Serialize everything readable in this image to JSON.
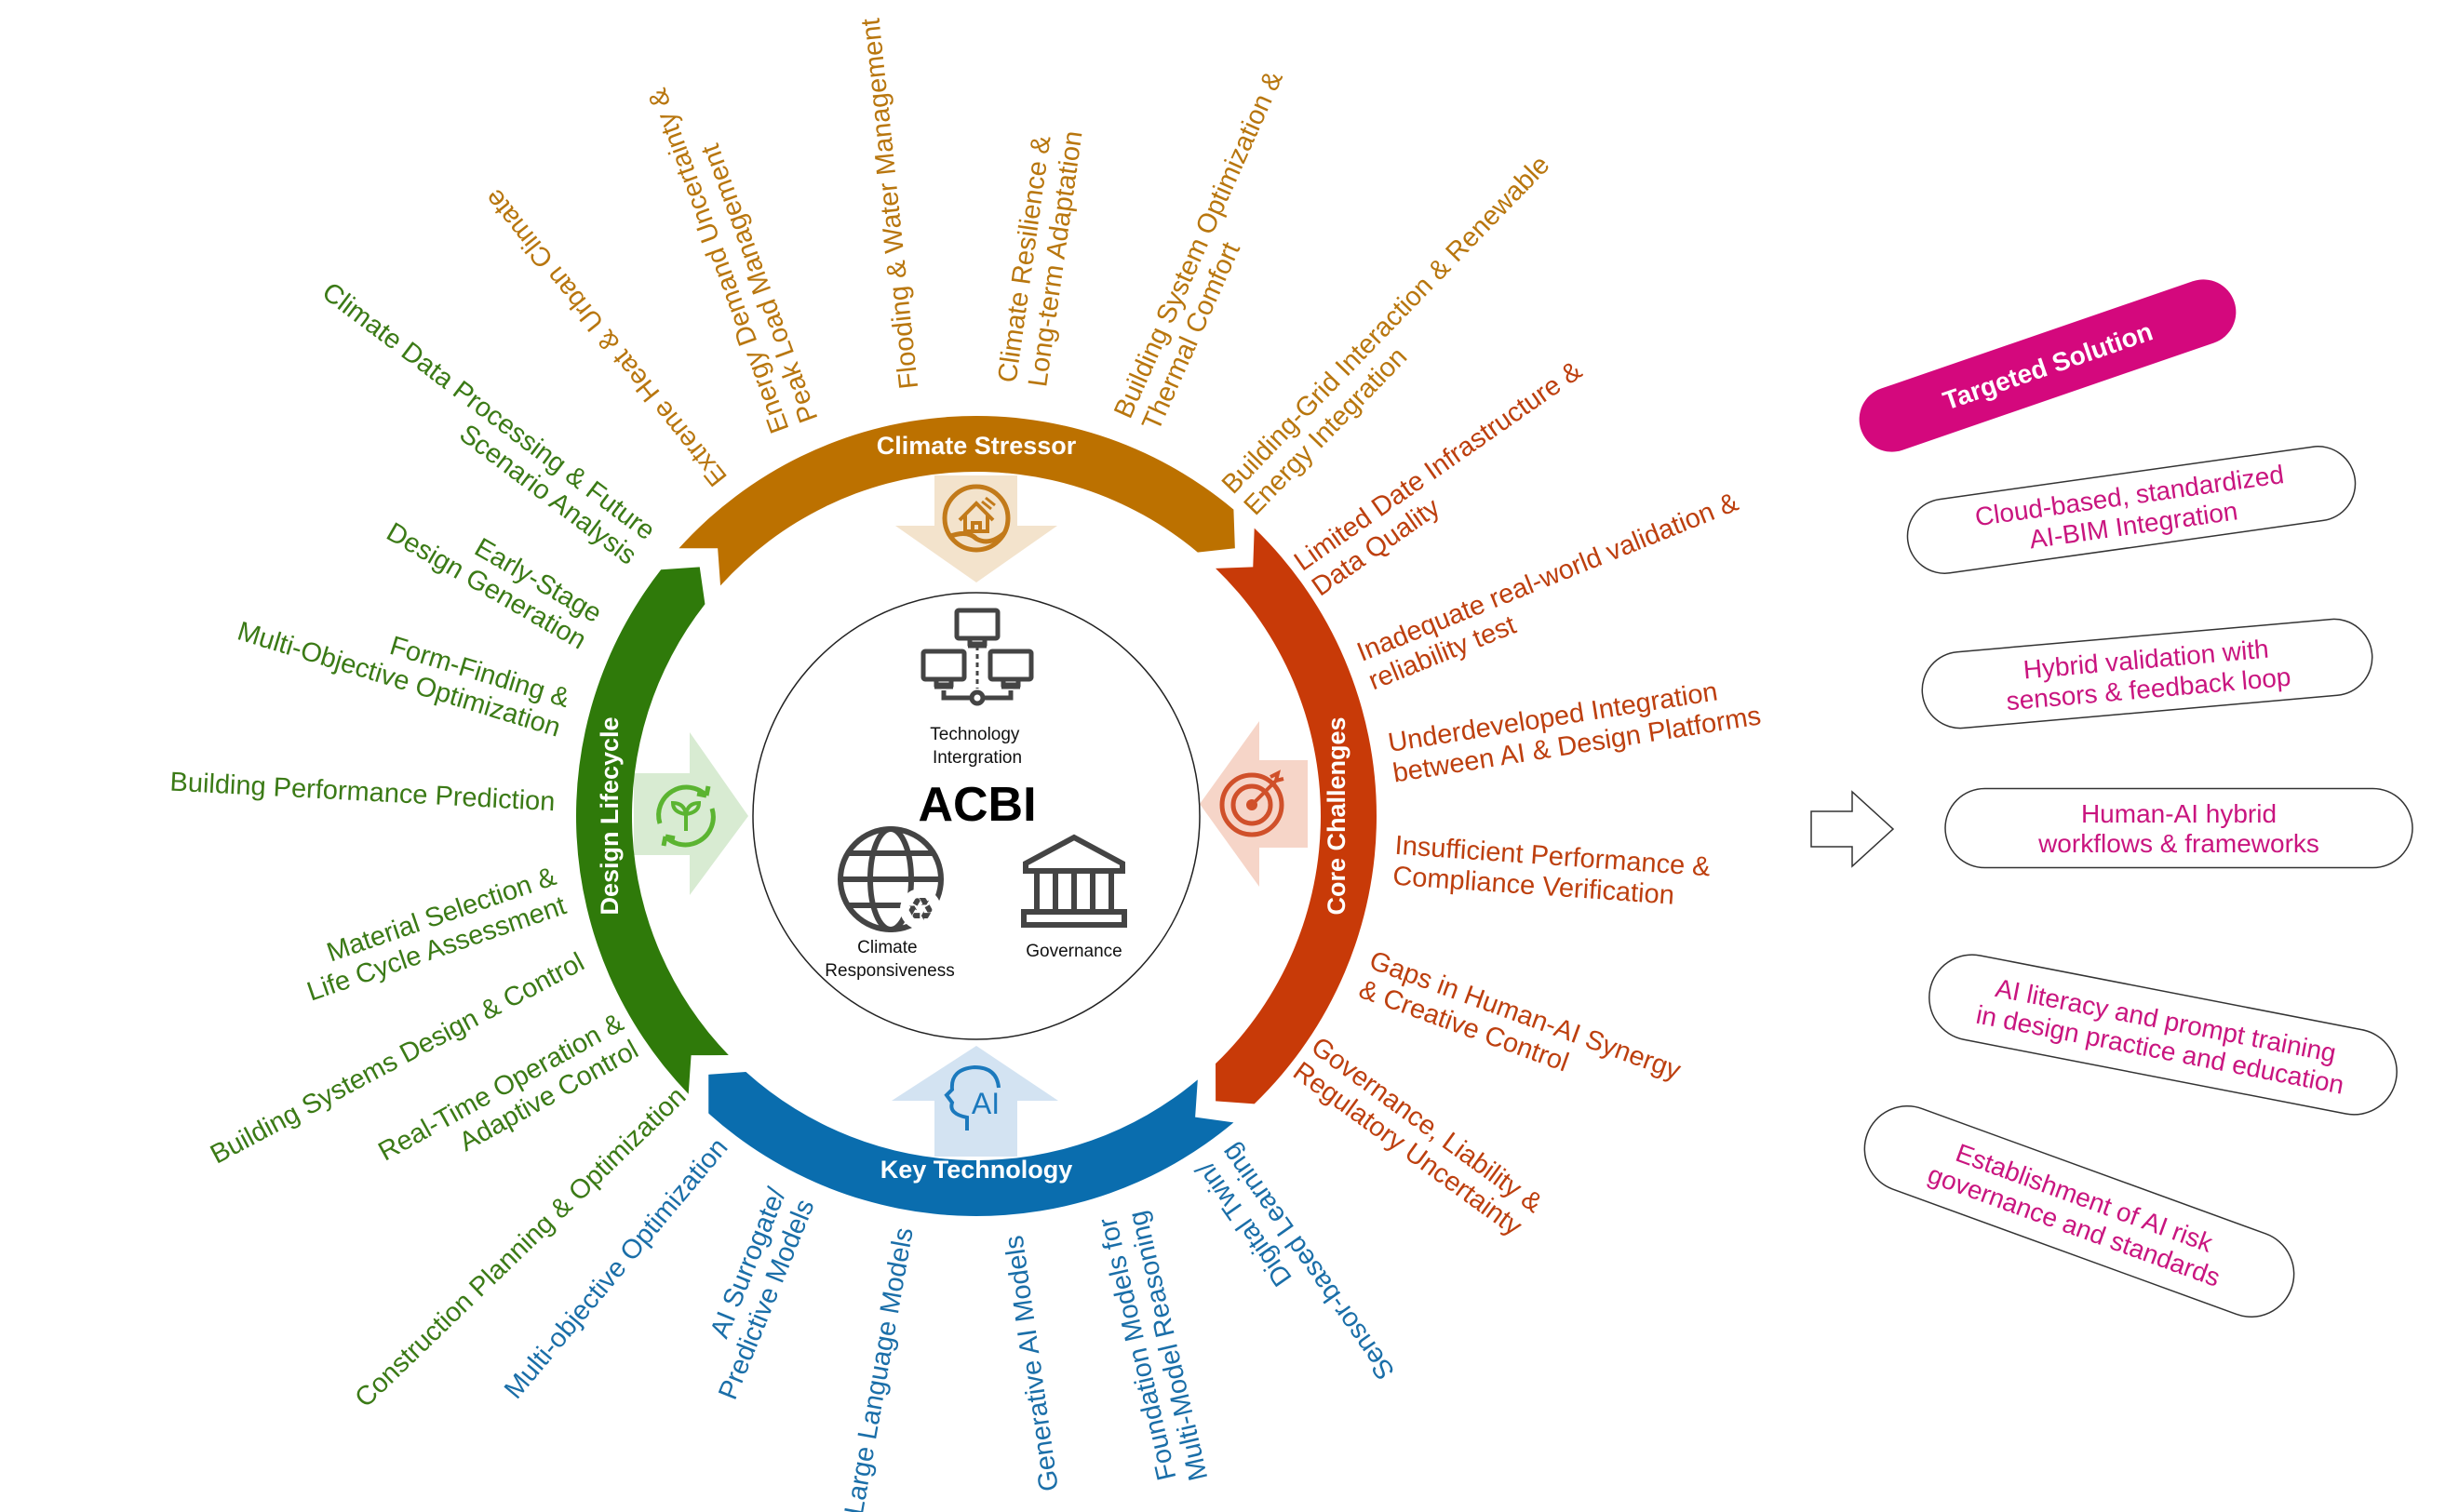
{
  "colors": {
    "climate_stressor": "#BC7100",
    "core_challenges": "#C83A08",
    "key_technology": "#0A6DAE",
    "design_lifecycle": "#2F7A0A",
    "solution_accent": "#D4087D",
    "solution_text": "#C9157F"
  },
  "center": {
    "title": "ACBI",
    "technology_integration": [
      "Technology",
      "Intergration"
    ],
    "climate_responsiveness": [
      "Climate",
      "Responsiveness"
    ],
    "governance": "Governance"
  },
  "segments": {
    "climate_stressor": {
      "title": "Climate Stressor",
      "icon": "house-flood-icon",
      "items": [
        [
          "Extreme Heat & Urban Climate"
        ],
        [
          "Energy Demand Uncertainty &",
          "Peak Load Management"
        ],
        [
          "Flooding & Water Management"
        ],
        [
          "Climate Resilience &",
          "Long-term Adaptation"
        ],
        [
          "Building System Optimization &",
          "Thermal Comfort"
        ],
        [
          "Building-Grid Interaction & Renewable",
          "Energy Integration"
        ]
      ]
    },
    "core_challenges": {
      "title": "Core Challenges",
      "icon": "target-icon",
      "items": [
        [
          "Limited Date Infrastructure &",
          "Data Quality"
        ],
        [
          "Inadequate real-world validation &",
          "reliability test"
        ],
        [
          "Underdeveloped Integration",
          "between AI & Design Platforms"
        ],
        [
          "Insufficient Performance &",
          "Compliance Verification"
        ],
        [
          "Gaps in Human-AI Synergy",
          "& Creative Control"
        ],
        [
          "Governance, Liability &",
          "Regulatory Uncertainty"
        ]
      ]
    },
    "key_technology": {
      "title": "Key Technology",
      "icon": "ai-head-icon",
      "items": [
        [
          "Multi-objective Optimization"
        ],
        [
          "AI Surrogate/",
          "Predictive Models"
        ],
        [
          "Large Language Models"
        ],
        [
          "Generative AI Models"
        ],
        [
          "Foundation Models for",
          "Multi-Model Reasoning"
        ],
        [
          "Digital Twin/",
          "Sensor-based Learning"
        ]
      ]
    },
    "design_lifecycle": {
      "title": "Design Lifecycle",
      "icon": "plant-cycle-icon",
      "items": [
        [
          "Climate Data Processing & Future",
          "Scenario Analysis"
        ],
        [
          "Early-Stage",
          "Design Generation"
        ],
        [
          "Form-Finding &",
          "Multi-Objective Optimization"
        ],
        [
          "Building Performance Prediction"
        ],
        [
          "Material Selection &",
          "Life Cycle Assessment"
        ],
        [
          "Building Systems Design & Control"
        ],
        [
          "Real-Time Operation &",
          "Adaptive Control"
        ],
        [
          "Construction Planning & Optimization"
        ]
      ]
    }
  },
  "solutions": {
    "title": "Targeted Solution",
    "items": [
      [
        "Cloud-based, standardized",
        "AI-BIM Integration"
      ],
      [
        "Hybrid validation with",
        "sensors & feedback loop"
      ],
      [
        "Human-AI hybrid",
        "workflows & frameworks"
      ],
      [
        "AI literacy and prompt training",
        "in design practice and education"
      ],
      [
        "Establishment of AI risk",
        "governance and standards"
      ]
    ]
  }
}
